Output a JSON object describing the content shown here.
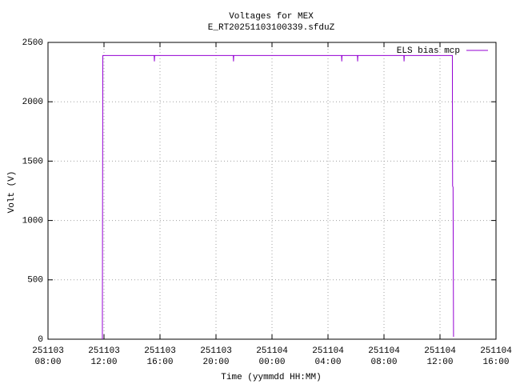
{
  "chart_data": {
    "type": "line",
    "title": "Voltages for MEX",
    "subtitle": "E_RT20251103100339.sfduZ",
    "x_label": "Time (yymmdd HH:MM)",
    "y_label": "Volt (V)",
    "x": [
      "251103 11:53",
      "251103 11:54",
      "251103 11:55",
      "251103 15:35",
      "251103 15:36",
      "251103 15:37",
      "251103 21:14",
      "251103 21:15",
      "251103 21:16",
      "251104 04:58",
      "251104 04:59",
      "251104 05:00",
      "251104 06:06",
      "251104 06:07",
      "251104 06:08",
      "251104 09:25",
      "251104 09:26",
      "251104 09:27",
      "251104 12:53",
      "251104 12:54",
      "251104 12:56",
      "251104 12:58"
    ],
    "series": [
      {
        "name": "ELS bias mcp",
        "color": "#9400d3",
        "values": [
          0,
          1280,
          2390,
          2390,
          2340,
          2390,
          2390,
          2340,
          2390,
          2390,
          2340,
          2390,
          2390,
          2340,
          2390,
          2390,
          2340,
          2390,
          2390,
          1290,
          1280,
          20
        ]
      }
    ],
    "xlim": [
      "251103 08:00",
      "251104 16:00"
    ],
    "xticks": [
      "251103 08:00",
      "251103 12:00",
      "251103 16:00",
      "251103 20:00",
      "251104 00:00",
      "251104 04:00",
      "251104 08:00",
      "251104 12:00",
      "251104 16:00"
    ],
    "ylim": [
      0,
      2500
    ],
    "yticks": [
      0,
      500,
      1000,
      1500,
      2000,
      2500
    ],
    "grid": true,
    "legend": "top-right"
  }
}
